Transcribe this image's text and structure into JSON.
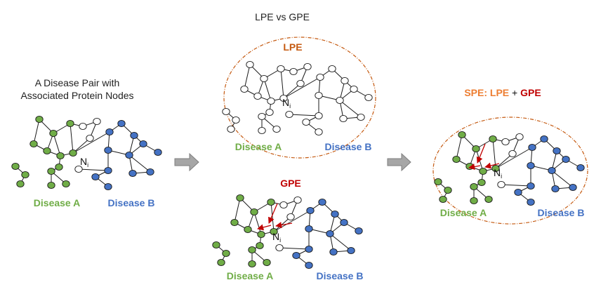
{
  "labels": {
    "main_title": "LPE vs GPE",
    "pair_title_line1": "A Disease Pair with",
    "pair_title_line2": "Associated Protein Nodes",
    "lpe": "LPE",
    "gpe": "GPE",
    "spe_prefix": "SPE:",
    "spe_lpe": "LPE",
    "spe_plus": "+",
    "spe_gpe": "GPE",
    "disease_a": "Disease A",
    "disease_b": "Disease B",
    "node_label": "N",
    "node_sub": "i"
  },
  "colors": {
    "disease_a": "#70ad47",
    "disease_b": "#4472c4",
    "neutral": "#ffffff",
    "lpe": "#c55a11",
    "gpe": "#c00000",
    "spe": "#ed7d31",
    "arrow_fill": "#a6a6a6",
    "arrow_stroke": "#7f7f7f",
    "ellipse": "#c55a11",
    "edge": "#1a1a1a"
  }
}
